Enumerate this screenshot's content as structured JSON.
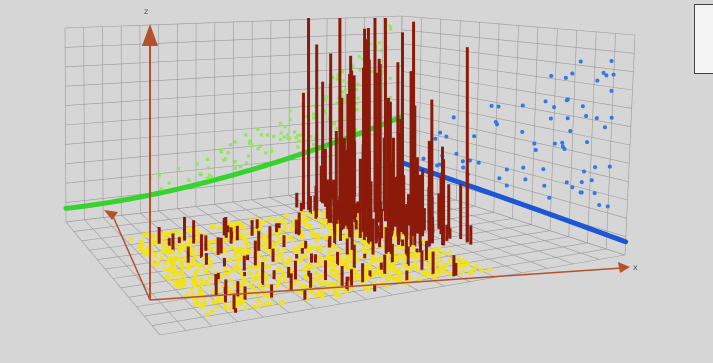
{
  "chart_data": {
    "type": "scatter",
    "title": "",
    "axes": {
      "x": {
        "label": "x",
        "ticks": []
      },
      "y": {
        "label": "",
        "ticks": []
      },
      "z": {
        "label": "z",
        "ticks": []
      }
    },
    "grid": true,
    "legend": {
      "placement": "top-right",
      "entries": [
        "",
        "",
        "",
        ""
      ]
    },
    "colors": {
      "background": "#d6d6d6",
      "grid": "#9a9a9a",
      "axis": "#b5502c",
      "green": "#36d22e",
      "green_points": "#8fe85c",
      "blue": "#1a56d6",
      "blue_points": "#2f78ee",
      "yellow": "#f2e21c",
      "bars": "#8c1a0a"
    },
    "series": [
      {
        "name": "",
        "kind": "surface-points",
        "color_key": "yellow",
        "count": 900
      },
      {
        "name": "",
        "kind": "vertical-bars",
        "color_key": "bars",
        "count": 260
      },
      {
        "name": "",
        "kind": "wall-points",
        "wall": "back",
        "color_key": "green_points",
        "count": 140
      },
      {
        "name": "",
        "kind": "wall-points",
        "wall": "right",
        "color_key": "blue_points",
        "count": 70
      },
      {
        "name": "",
        "kind": "trend-curve",
        "wall": "back",
        "color_key": "green"
      },
      {
        "name": "",
        "kind": "trend-curve",
        "wall": "right",
        "color_key": "blue"
      }
    ]
  }
}
